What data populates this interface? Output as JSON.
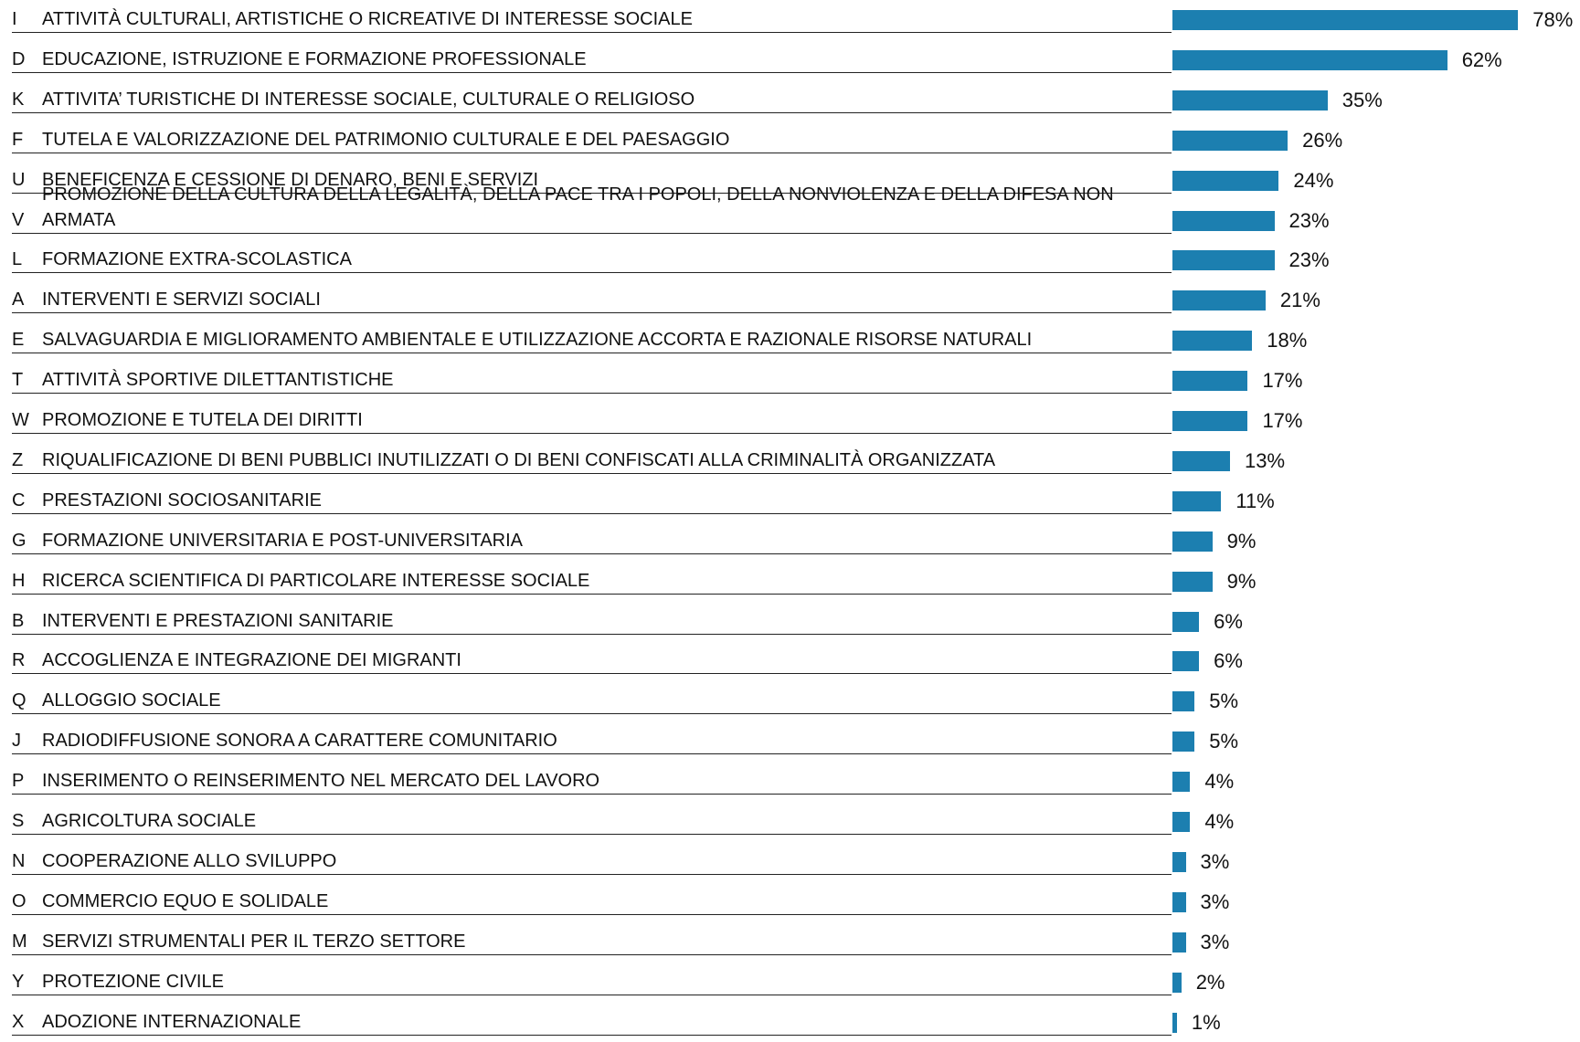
{
  "chart_data": {
    "type": "bar",
    "orientation": "horizontal",
    "color": "#1c7fb0",
    "codes": [
      "I",
      "D",
      "K",
      "F",
      "U",
      "V",
      "L",
      "A",
      "E",
      "T",
      "W",
      "Z",
      "C",
      "G",
      "H",
      "B",
      "R",
      "Q",
      "J",
      "P",
      "S",
      "N",
      "O",
      "M",
      "Y",
      "X"
    ],
    "categories": [
      "ATTIVITÀ CULTURALI, ARTISTICHE O RICREATIVE DI INTERESSE SOCIALE",
      "EDUCAZIONE, ISTRUZIONE E FORMAZIONE PROFESSIONALE",
      "ATTIVITA’ TURISTICHE DI INTERESSE SOCIALE, CULTURALE O RELIGIOSO",
      "TUTELA E VALORIZZAZIONE DEL PATRIMONIO CULTURALE E DEL PAESAGGIO",
      "BENEFICENZA E CESSIONE DI DENARO, BENI E SERVIZI",
      "PROMOZIONE DELLA CULTURA DELLA LEGALITÀ, DELLA PACE TRA I POPOLI, DELLA NONVIOLENZA E DELLA DIFESA NON ARMATA",
      "FORMAZIONE EXTRA-SCOLASTICA",
      "INTERVENTI E SERVIZI SOCIALI",
      "SALVAGUARDIA E MIGLIORAMENTO AMBIENTALE E UTILIZZAZIONE ACCORTA E RAZIONALE  RISORSE NATURALI",
      "ATTIVITÀ SPORTIVE DILETTANTISTICHE",
      "PROMOZIONE E TUTELA DEI DIRITTI",
      "RIQUALIFICAZIONE DI BENI PUBBLICI INUTILIZZATI O DI BENI CONFISCATI ALLA CRIMINALITÀ ORGANIZZATA",
      "PRESTAZIONI SOCIOSANITARIE",
      "FORMAZIONE UNIVERSITARIA E POST-UNIVERSITARIA",
      "RICERCA SCIENTIFICA DI PARTICOLARE INTERESSE SOCIALE",
      "INTERVENTI E PRESTAZIONI SANITARIE",
      "ACCOGLIENZA E INTEGRAZIONE DEI MIGRANTI",
      "ALLOGGIO SOCIALE",
      "RADIODIFFUSIONE SONORA A CARATTERE COMUNITARIO",
      "INSERIMENTO O REINSERIMENTO NEL MERCATO DEL LAVORO",
      "AGRICOLTURA SOCIALE",
      "COOPERAZIONE ALLO SVILUPPO",
      "COMMERCIO EQUO E SOLIDALE",
      "SERVIZI STRUMENTALI PER IL TERZO SETTORE",
      "PROTEZIONE CIVILE",
      "ADOZIONE INTERNAZIONALE"
    ],
    "values": [
      78,
      62,
      35,
      26,
      24,
      23,
      23,
      21,
      18,
      17,
      17,
      13,
      11,
      9,
      9,
      6,
      6,
      5,
      5,
      4,
      4,
      3,
      3,
      3,
      2,
      1
    ],
    "value_labels": [
      "78%",
      "62%",
      "35%",
      "26%",
      "24%",
      "23%",
      "23%",
      "21%",
      "18%",
      "17%",
      "17%",
      "13%",
      "11%",
      "9%",
      "9%",
      "6%",
      "6%",
      "5%",
      "5%",
      "4%",
      "4%",
      "3%",
      "3%",
      "3%",
      "2%",
      "1%"
    ]
  }
}
